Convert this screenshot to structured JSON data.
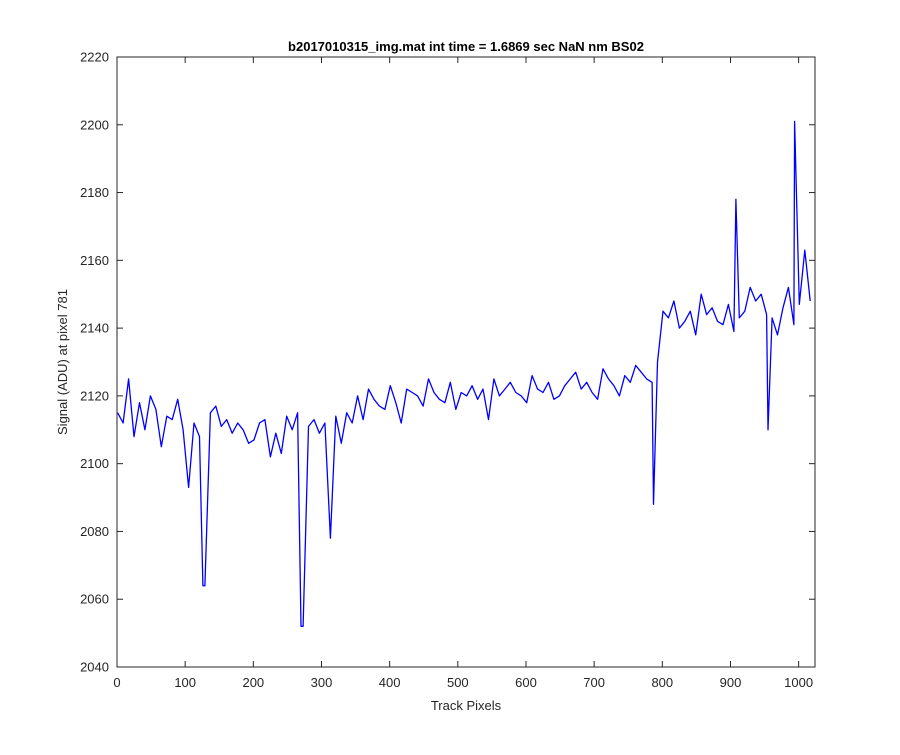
{
  "chart_data": {
    "type": "line",
    "title": "b2017010315_img.mat int time = 1.6869 sec  NaN nm BS02",
    "xlabel": "Track Pixels",
    "ylabel": "Signal (ADU) at pixel 781",
    "xlim": [
      0,
      1024
    ],
    "ylim": [
      2040,
      2220
    ],
    "xticks": [
      0,
      100,
      200,
      300,
      400,
      500,
      600,
      700,
      800,
      900,
      1000
    ],
    "yticks": [
      2040,
      2060,
      2080,
      2100,
      2120,
      2140,
      2160,
      2180,
      2200,
      2220
    ],
    "grid": false,
    "line_color": "#0000ff",
    "series": [
      {
        "x_start": 1,
        "x_step": 8,
        "values": [
          2115,
          2112,
          2125,
          2108,
          2118,
          2110,
          2120,
          2116,
          2105,
          2114,
          2113,
          2119,
          2110,
          2093,
          2112,
          2108,
          2064,
          2115,
          2117,
          2111,
          2113,
          2109,
          2112,
          2110,
          2106,
          2107,
          2112,
          2113,
          2102,
          2109,
          2103,
          2114,
          2110,
          2115,
          2052,
          2111,
          2113,
          2109,
          2112,
          2078,
          2114,
          2106,
          2115,
          2112,
          2120,
          2113,
          2122,
          2119,
          2117,
          2116,
          2123,
          2118,
          2112,
          2122,
          2121,
          2120,
          2117,
          2125,
          2121,
          2119,
          2118,
          2124,
          2116,
          2121,
          2120,
          2123,
          2119,
          2122,
          2113,
          2125,
          2120,
          2122,
          2124,
          2121,
          2120,
          2118,
          2126,
          2122,
          2121,
          2124,
          2119,
          2120,
          2123,
          2125,
          2127,
          2122,
          2124,
          2121,
          2119,
          2128,
          2125,
          2123,
          2120,
          2126,
          2124,
          2129,
          2127,
          2125,
          2124,
          2130,
          2145,
          2143,
          2148,
          2140,
          2142,
          2145,
          2138,
          2150,
          2144,
          2146,
          2142,
          2141,
          2147,
          2139,
          2143,
          2145,
          2152,
          2148,
          2150,
          2144,
          2143,
          2138,
          2146,
          2152,
          2141,
          2147,
          2163,
          2148
        ]
      }
    ],
    "spikes": [
      {
        "x": 994,
        "y": 2201
      },
      {
        "x": 908,
        "y": 2178
      },
      {
        "x": 955,
        "y": 2110
      },
      {
        "x": 787,
        "y": 2088
      },
      {
        "x": 126,
        "y": 2064
      },
      {
        "x": 270,
        "y": 2052
      }
    ]
  }
}
